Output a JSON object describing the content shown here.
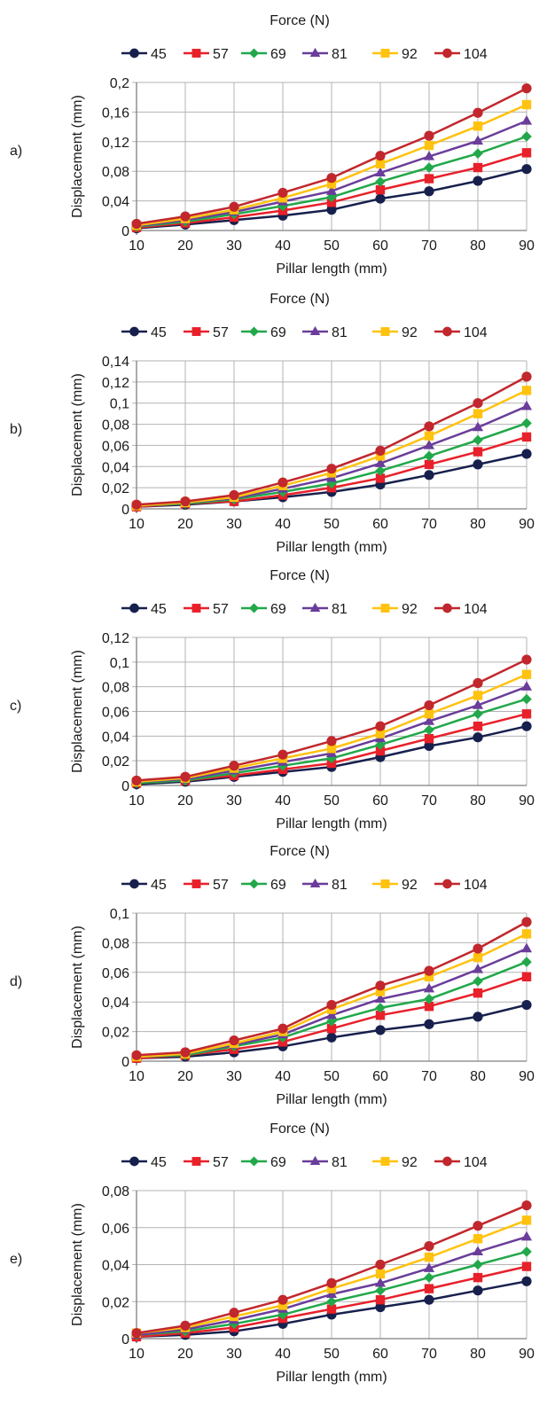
{
  "colors": {
    "45": "#17204d",
    "57": "#e8202a",
    "69": "#22a84a",
    "81": "#6a3d9a",
    "92": "#ffc20e",
    "104": "#c1272d",
    "grid": "#b3b3b3",
    "axis": "#7f7f7f"
  },
  "chart_data": [
    {
      "panel_label": "a)",
      "type": "line",
      "legend_title": "Force (N)",
      "legend_position": "top",
      "xlabel": "Pillar length (mm)",
      "ylabel": "Displacement (mm)",
      "x": [
        10,
        20,
        30,
        40,
        50,
        60,
        70,
        80,
        90
      ],
      "ylim": [
        0,
        0.2
      ],
      "yticks": [
        0,
        0.04,
        0.08,
        0.12,
        0.16,
        0.2
      ],
      "yticklabels": [
        "0",
        "0,04",
        "0,08",
        "0,12",
        "0,16",
        "0,2"
      ],
      "grid": true,
      "series": [
        {
          "name": "45",
          "marker": "circle",
          "values": [
            0.003,
            0.008,
            0.014,
            0.02,
            0.028,
            0.043,
            0.053,
            0.067,
            0.083
          ]
        },
        {
          "name": "57",
          "marker": "square",
          "values": [
            0.004,
            0.01,
            0.018,
            0.027,
            0.038,
            0.055,
            0.07,
            0.085,
            0.105
          ]
        },
        {
          "name": "69",
          "marker": "diamond",
          "values": [
            0.005,
            0.012,
            0.022,
            0.033,
            0.045,
            0.066,
            0.085,
            0.104,
            0.127
          ]
        },
        {
          "name": "81",
          "marker": "triangle",
          "values": [
            0.006,
            0.014,
            0.025,
            0.039,
            0.053,
            0.078,
            0.1,
            0.121,
            0.148
          ]
        },
        {
          "name": "92",
          "marker": "square",
          "values": [
            0.007,
            0.016,
            0.028,
            0.044,
            0.063,
            0.09,
            0.115,
            0.141,
            0.17
          ]
        },
        {
          "name": "104",
          "marker": "circle",
          "values": [
            0.009,
            0.019,
            0.032,
            0.051,
            0.071,
            0.101,
            0.128,
            0.159,
            0.192
          ]
        }
      ]
    },
    {
      "panel_label": "b)",
      "type": "line",
      "legend_title": "Force (N)",
      "legend_position": "top",
      "xlabel": "Pillar length (mm)",
      "ylabel": "Displacement (mm)",
      "x": [
        10,
        20,
        30,
        40,
        50,
        60,
        70,
        80,
        90
      ],
      "ylim": [
        0,
        0.14
      ],
      "yticks": [
        0,
        0.02,
        0.04,
        0.06,
        0.08,
        0.1,
        0.12,
        0.14
      ],
      "yticklabels": [
        "0",
        "0,02",
        "0,04",
        "0,06",
        "0,08",
        "0,1",
        "0,12",
        "0,14"
      ],
      "grid": true,
      "series": [
        {
          "name": "45",
          "marker": "circle",
          "values": [
            0.002,
            0.004,
            0.007,
            0.011,
            0.016,
            0.023,
            0.032,
            0.042,
            0.052
          ]
        },
        {
          "name": "57",
          "marker": "square",
          "values": [
            0.002,
            0.005,
            0.007,
            0.013,
            0.02,
            0.029,
            0.042,
            0.054,
            0.068
          ]
        },
        {
          "name": "69",
          "marker": "diamond",
          "values": [
            0.003,
            0.005,
            0.009,
            0.016,
            0.024,
            0.036,
            0.05,
            0.065,
            0.081
          ]
        },
        {
          "name": "81",
          "marker": "triangle",
          "values": [
            0.003,
            0.006,
            0.01,
            0.019,
            0.029,
            0.043,
            0.06,
            0.077,
            0.097
          ]
        },
        {
          "name": "92",
          "marker": "square",
          "values": [
            0.003,
            0.006,
            0.011,
            0.022,
            0.034,
            0.05,
            0.069,
            0.09,
            0.112
          ]
        },
        {
          "name": "104",
          "marker": "circle",
          "values": [
            0.004,
            0.007,
            0.013,
            0.025,
            0.038,
            0.055,
            0.078,
            0.1,
            0.125
          ]
        }
      ]
    },
    {
      "panel_label": "c)",
      "type": "line",
      "legend_title": "Force (N)",
      "legend_position": "top",
      "xlabel": "Pillar length (mm)",
      "ylabel": "Displacement (mm)",
      "x": [
        10,
        20,
        30,
        40,
        50,
        60,
        70,
        80,
        90
      ],
      "ylim": [
        0,
        0.12
      ],
      "yticks": [
        0,
        0.02,
        0.04,
        0.06,
        0.08,
        0.1,
        0.12
      ],
      "yticklabels": [
        "0",
        "0,02",
        "0,04",
        "0,06",
        "0,08",
        "0,1",
        "0,12"
      ],
      "grid": true,
      "series": [
        {
          "name": "45",
          "marker": "circle",
          "values": [
            0.001,
            0.003,
            0.007,
            0.011,
            0.015,
            0.023,
            0.032,
            0.039,
            0.048
          ]
        },
        {
          "name": "57",
          "marker": "square",
          "values": [
            0.002,
            0.004,
            0.008,
            0.013,
            0.018,
            0.028,
            0.038,
            0.048,
            0.058
          ]
        },
        {
          "name": "69",
          "marker": "diamond",
          "values": [
            0.002,
            0.004,
            0.01,
            0.016,
            0.022,
            0.033,
            0.045,
            0.058,
            0.07
          ]
        },
        {
          "name": "81",
          "marker": "triangle",
          "values": [
            0.003,
            0.005,
            0.012,
            0.019,
            0.026,
            0.038,
            0.052,
            0.065,
            0.08
          ]
        },
        {
          "name": "92",
          "marker": "square",
          "values": [
            0.003,
            0.006,
            0.014,
            0.022,
            0.03,
            0.042,
            0.058,
            0.073,
            0.09
          ]
        },
        {
          "name": "104",
          "marker": "circle",
          "values": [
            0.004,
            0.007,
            0.016,
            0.025,
            0.036,
            0.048,
            0.065,
            0.083,
            0.102
          ]
        }
      ]
    },
    {
      "panel_label": "d)",
      "type": "line",
      "legend_title": "Force (N)",
      "legend_position": "top",
      "xlabel": "Pillar length (mm)",
      "ylabel": "Displacement (mm)",
      "x": [
        10,
        20,
        30,
        40,
        50,
        60,
        70,
        80,
        90
      ],
      "ylim": [
        0,
        0.1
      ],
      "yticks": [
        0,
        0.02,
        0.04,
        0.06,
        0.08,
        0.1
      ],
      "yticklabels": [
        "0",
        "0,02",
        "0,04",
        "0,06",
        "0,08",
        "0,1"
      ],
      "grid": true,
      "series": [
        {
          "name": "45",
          "marker": "circle",
          "values": [
            0.002,
            0.003,
            0.006,
            0.01,
            0.016,
            0.021,
            0.025,
            0.03,
            0.038
          ]
        },
        {
          "name": "57",
          "marker": "square",
          "values": [
            0.002,
            0.004,
            0.008,
            0.013,
            0.022,
            0.031,
            0.037,
            0.046,
            0.057
          ]
        },
        {
          "name": "69",
          "marker": "diamond",
          "values": [
            0.003,
            0.004,
            0.01,
            0.016,
            0.027,
            0.036,
            0.042,
            0.054,
            0.067
          ]
        },
        {
          "name": "81",
          "marker": "triangle",
          "values": [
            0.003,
            0.005,
            0.011,
            0.018,
            0.031,
            0.042,
            0.049,
            0.062,
            0.076
          ]
        },
        {
          "name": "92",
          "marker": "square",
          "values": [
            0.003,
            0.005,
            0.012,
            0.02,
            0.035,
            0.047,
            0.057,
            0.07,
            0.086
          ]
        },
        {
          "name": "104",
          "marker": "circle",
          "values": [
            0.004,
            0.006,
            0.014,
            0.022,
            0.038,
            0.051,
            0.061,
            0.076,
            0.094
          ]
        }
      ]
    },
    {
      "panel_label": "e)",
      "type": "line",
      "legend_title": "Force (N)",
      "legend_position": "top",
      "xlabel": "Pillar length (mm)",
      "ylabel": "Displacement (mm)",
      "x": [
        10,
        20,
        30,
        40,
        50,
        60,
        70,
        80,
        90
      ],
      "ylim": [
        0,
        0.08
      ],
      "yticks": [
        0,
        0.02,
        0.04,
        0.06,
        0.08
      ],
      "yticklabels": [
        "0",
        "0,02",
        "0,04",
        "0,06",
        "0,08"
      ],
      "grid": true,
      "series": [
        {
          "name": "45",
          "marker": "circle",
          "values": [
            0.001,
            0.002,
            0.004,
            0.008,
            0.013,
            0.017,
            0.021,
            0.026,
            0.031
          ]
        },
        {
          "name": "57",
          "marker": "square",
          "values": [
            0.001,
            0.003,
            0.006,
            0.011,
            0.016,
            0.021,
            0.027,
            0.033,
            0.039
          ]
        },
        {
          "name": "69",
          "marker": "diamond",
          "values": [
            0.002,
            0.004,
            0.008,
            0.013,
            0.02,
            0.026,
            0.033,
            0.04,
            0.047
          ]
        },
        {
          "name": "81",
          "marker": "triangle",
          "values": [
            0.002,
            0.005,
            0.01,
            0.016,
            0.024,
            0.03,
            0.038,
            0.047,
            0.055
          ]
        },
        {
          "name": "92",
          "marker": "square",
          "values": [
            0.003,
            0.006,
            0.012,
            0.018,
            0.027,
            0.035,
            0.044,
            0.054,
            0.064
          ]
        },
        {
          "name": "104",
          "marker": "circle",
          "values": [
            0.003,
            0.007,
            0.014,
            0.021,
            0.03,
            0.04,
            0.05,
            0.061,
            0.072
          ]
        }
      ]
    }
  ]
}
